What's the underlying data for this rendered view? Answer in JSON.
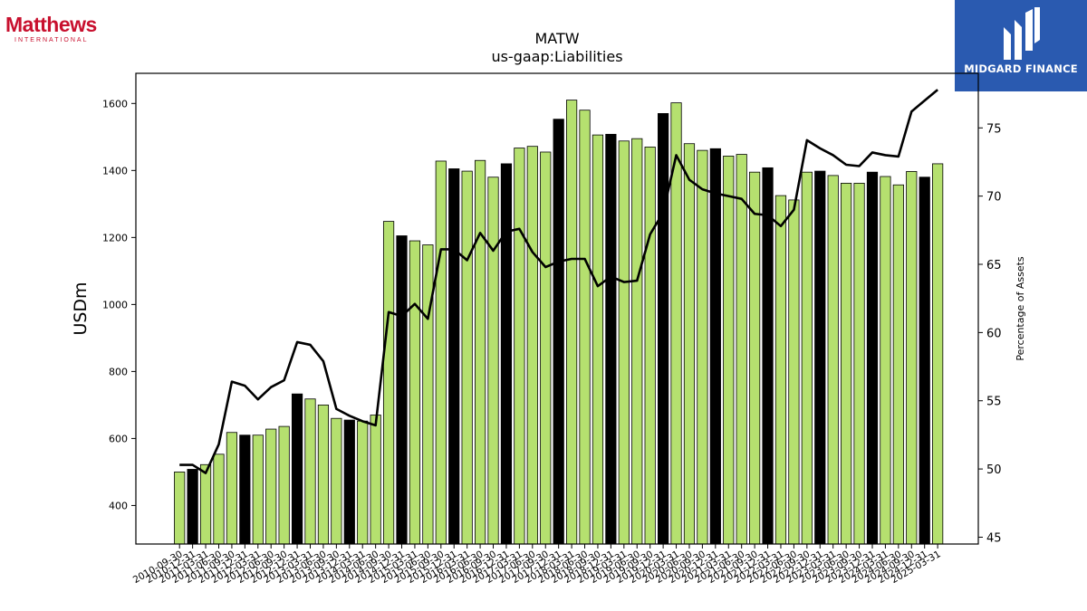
{
  "logos": {
    "left_brand": "Matthews",
    "left_sub": "INTERNATIONAL",
    "right_name": "MIDGARD FINANCE"
  },
  "chart_data": {
    "type": "bar",
    "title": "MATW",
    "subtitle": "us-gaap:Liabilities",
    "ylabel": "USDm",
    "y2label": "Percentage of Assets",
    "ylim": [
      285,
      1690
    ],
    "y2lim": [
      44.5,
      79.0
    ],
    "yticks": [
      400,
      600,
      800,
      1000,
      1200,
      1400,
      1600
    ],
    "y2ticks": [
      45,
      50,
      55,
      60,
      65,
      70,
      75
    ],
    "colors": {
      "bar_default": "#b5e06f",
      "bar_highlight": "#000000",
      "line": "#000000"
    },
    "categories": [
      "2010-09-30",
      "2010-12-31",
      "2011-03-31",
      "2011-06-30",
      "2011-09-30",
      "2011-12-31",
      "2012-03-31",
      "2012-06-30",
      "2012-09-30",
      "2012-12-31",
      "2013-03-31",
      "2013-06-30",
      "2013-09-30",
      "2013-12-31",
      "2014-03-31",
      "2014-06-30",
      "2014-09-30",
      "2014-12-31",
      "2015-03-31",
      "2015-06-30",
      "2015-09-30",
      "2015-12-31",
      "2016-03-31",
      "2016-06-30",
      "2016-09-30",
      "2016-12-31",
      "2017-03-31",
      "2017-06-30",
      "2017-09-30",
      "2017-12-31",
      "2018-03-31",
      "2018-06-30",
      "2018-09-30",
      "2018-12-31",
      "2019-03-31",
      "2019-06-30",
      "2019-09-30",
      "2019-12-31",
      "2020-03-31",
      "2020-06-30",
      "2020-09-30",
      "2020-12-31",
      "2021-03-31",
      "2021-06-30",
      "2021-09-30",
      "2021-12-31",
      "2022-03-31",
      "2022-06-30",
      "2022-09-30",
      "2022-12-31",
      "2023-03-31",
      "2023-06-30",
      "2023-09-30",
      "2023-12-31",
      "2024-03-31",
      "2024-06-30",
      "2024-09-30",
      "2024-12-31",
      "2025-03-31"
    ],
    "values": [
      500,
      508,
      522,
      553,
      618,
      610,
      610,
      628,
      636,
      733,
      718,
      700,
      660,
      655,
      652,
      670,
      1248,
      1205,
      1190,
      1178,
      1428,
      1405,
      1398,
      1430,
      1380,
      1420,
      1467,
      1472,
      1455,
      1553,
      1610,
      1580,
      1506,
      1508,
      1488,
      1495,
      1470,
      1570,
      1602,
      1480,
      1460,
      1465,
      1443,
      1448,
      1395,
      1408,
      1325,
      1312,
      1395,
      1398,
      1385,
      1362,
      1362,
      1395,
      1382,
      1357,
      1397,
      1380,
      1420
    ],
    "highlight": [
      false,
      true,
      false,
      false,
      false,
      true,
      false,
      false,
      false,
      true,
      false,
      false,
      false,
      true,
      false,
      false,
      false,
      true,
      false,
      false,
      false,
      true,
      false,
      false,
      false,
      true,
      false,
      false,
      false,
      true,
      false,
      false,
      false,
      true,
      false,
      false,
      false,
      true,
      false,
      false,
      false,
      true,
      false,
      false,
      false,
      true,
      false,
      false,
      false,
      true,
      false,
      false,
      false,
      true,
      false,
      false,
      false,
      true,
      false
    ],
    "pct_of_assets": [
      50.3,
      50.3,
      49.7,
      51.8,
      56.4,
      56.1,
      55.1,
      56.0,
      56.5,
      59.3,
      59.1,
      57.9,
      54.4,
      53.9,
      53.5,
      53.2,
      61.5,
      61.2,
      62.1,
      61.0,
      66.1,
      66.1,
      65.3,
      67.3,
      66.0,
      67.4,
      67.6,
      65.9,
      64.8,
      65.2,
      65.4,
      65.4,
      63.4,
      64.1,
      63.7,
      63.8,
      67.2,
      68.8,
      73.0,
      71.2,
      70.5,
      70.2,
      70.0,
      69.8,
      68.7,
      68.6,
      67.8,
      69.0,
      74.1,
      73.5,
      73.0,
      72.3,
      72.2,
      73.2,
      73.0,
      72.9,
      76.2,
      77.0,
      77.8
    ]
  }
}
